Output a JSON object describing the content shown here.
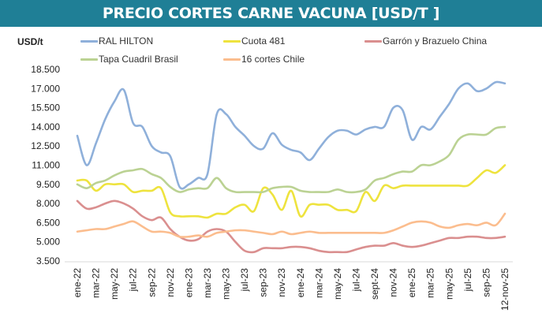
{
  "header": {
    "title": "PRECIO CORTES CARNE VACUNA [USD/T ]"
  },
  "chart_data": {
    "type": "line",
    "title": "PRECIO CORTES CARNE VACUNA [USD/T ]",
    "ylabel": "USD/t",
    "xlabel": "",
    "ylim": [
      3500,
      18500
    ],
    "yticks": [
      "3.500",
      "5.000",
      "6.500",
      "8.000",
      "9.500",
      "11.000",
      "12.500",
      "14.000",
      "15.500",
      "17.000",
      "18.500"
    ],
    "ytick_values": [
      3500,
      5000,
      6500,
      8000,
      9500,
      11000,
      12500,
      14000,
      15500,
      17000,
      18500
    ],
    "xtick_labels": [
      "ene-22",
      "mar-22",
      "may-22",
      "jul-22",
      "sep-22",
      "nov-22",
      "ene-23",
      "mar-23",
      "may-23",
      "jul-23",
      "sep-23",
      "nov-23",
      "ene-24",
      "mar-24",
      "may-24",
      "jul-24",
      "sept-24",
      "nov-24",
      "ene-25",
      "mar-25",
      "may-25",
      "jul-25",
      "sep-25",
      "12-nov-25"
    ],
    "x_points": 47,
    "legend_position": "top",
    "grid": false,
    "series": [
      {
        "name": "RAL HILTON",
        "color": "#8fb0da",
        "values": [
          13300,
          11000,
          12700,
          14600,
          16000,
          16900,
          14300,
          14000,
          12500,
          12000,
          11700,
          9300,
          9500,
          10000,
          10300,
          15000,
          15000,
          14000,
          13300,
          12500,
          12300,
          13500,
          12600,
          12200,
          12000,
          11400,
          12300,
          13200,
          13700,
          13700,
          13400,
          13800,
          14000,
          14000,
          15500,
          15300,
          13000,
          14000,
          13800,
          14800,
          15800,
          17000,
          17400,
          16800,
          17000,
          17500,
          17400
        ]
      },
      {
        "name": "Cuota 481",
        "color": "#eee33e",
        "values": [
          9800,
          9800,
          9000,
          9500,
          9500,
          9500,
          8900,
          9000,
          9000,
          9200,
          7300,
          7000,
          7000,
          7000,
          6900,
          7200,
          7200,
          7700,
          7900,
          7400,
          9200,
          8700,
          7500,
          9000,
          7000,
          7900,
          7900,
          7900,
          7500,
          7500,
          7400,
          8900,
          8200,
          9400,
          9200,
          9400,
          9400,
          9400,
          9400,
          9400,
          9400,
          9400,
          9400,
          10000,
          10600,
          10400,
          11000
        ]
      },
      {
        "name": "Garrón y Brazuelo China",
        "color": "#da8f8f",
        "values": [
          8200,
          7600,
          7700,
          8000,
          8200,
          8000,
          7600,
          7000,
          6700,
          6900,
          6000,
          5400,
          5100,
          5200,
          5800,
          6000,
          5800,
          5000,
          4300,
          4200,
          4500,
          4500,
          4500,
          4600,
          4600,
          4500,
          4300,
          4200,
          4200,
          4200,
          4400,
          4600,
          4700,
          4700,
          4900,
          4700,
          4600,
          4700,
          4900,
          5100,
          5300,
          5300,
          5400,
          5400,
          5300,
          5300,
          5400
        ]
      },
      {
        "name": "Tapa Cuadril Brasil",
        "color": "#bbd293",
        "values": [
          9500,
          9200,
          9600,
          9800,
          10200,
          10500,
          10600,
          10700,
          10300,
          10000,
          9300,
          8900,
          9100,
          9200,
          9200,
          10000,
          9200,
          8900,
          8900,
          8900,
          8900,
          9200,
          9300,
          9300,
          9000,
          8900,
          8900,
          8900,
          9100,
          8900,
          8900,
          9100,
          9800,
          10000,
          10300,
          10500,
          10500,
          11000,
          11000,
          11300,
          11800,
          13000,
          13400,
          13400,
          13400,
          13900,
          14000
        ]
      },
      {
        "name": "16 cortes Chile",
        "color": "#fbbd8e",
        "values": [
          5800,
          5900,
          6000,
          6000,
          6200,
          6400,
          6600,
          6200,
          5800,
          5800,
          5700,
          5400,
          5400,
          5500,
          5400,
          5700,
          5800,
          5900,
          5900,
          5800,
          5700,
          5600,
          5800,
          5600,
          5700,
          5800,
          5700,
          5700,
          5700,
          5700,
          5700,
          5700,
          5700,
          5700,
          5900,
          6200,
          6500,
          6600,
          6500,
          6200,
          6100,
          6300,
          6400,
          6300,
          6500,
          6300,
          7200
        ]
      }
    ]
  }
}
